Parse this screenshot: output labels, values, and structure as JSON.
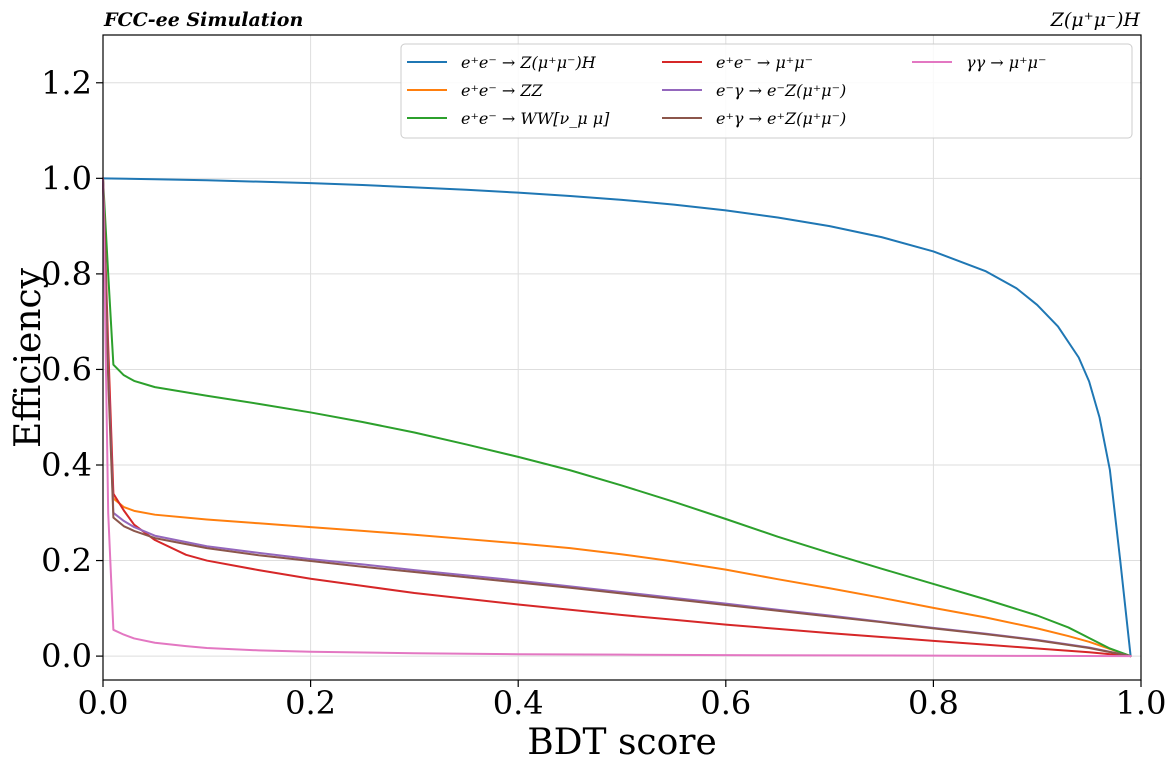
{
  "chart_data": {
    "type": "line",
    "top_left_label": "FCC-ee Simulation",
    "top_right_label": "Z(μ⁺μ⁻)H",
    "xlabel": "BDT score",
    "ylabel": "Efficiency",
    "xlim": [
      0.0,
      1.0
    ],
    "ylim": [
      -0.05,
      1.3
    ],
    "xticks": [
      {
        "value": 0.0,
        "label": "0.0"
      },
      {
        "value": 0.2,
        "label": "0.2"
      },
      {
        "value": 0.4,
        "label": "0.4"
      },
      {
        "value": 0.6,
        "label": "0.6"
      },
      {
        "value": 0.8,
        "label": "0.8"
      },
      {
        "value": 1.0,
        "label": "1.0"
      }
    ],
    "yticks": [
      {
        "value": 0.0,
        "label": "0.0"
      },
      {
        "value": 0.2,
        "label": "0.2"
      },
      {
        "value": 0.4,
        "label": "0.4"
      },
      {
        "value": 0.6,
        "label": "0.6"
      },
      {
        "value": 0.8,
        "label": "0.8"
      },
      {
        "value": 1.0,
        "label": "1.0"
      },
      {
        "value": 1.2,
        "label": "1.2"
      }
    ],
    "grid": true,
    "legend_position": "top-right",
    "legend_columns": 3,
    "series": [
      {
        "name": "e⁺e⁻ → Z(μ⁺μ⁻)H",
        "color": "#1f77b4",
        "x": [
          0,
          0.05,
          0.1,
          0.15,
          0.2,
          0.25,
          0.3,
          0.35,
          0.4,
          0.45,
          0.5,
          0.55,
          0.6,
          0.65,
          0.7,
          0.75,
          0.8,
          0.85,
          0.88,
          0.9,
          0.92,
          0.94,
          0.95,
          0.96,
          0.97,
          0.98,
          0.99
        ],
        "y": [
          1.0,
          0.998,
          0.996,
          0.993,
          0.99,
          0.986,
          0.981,
          0.976,
          0.97,
          0.963,
          0.955,
          0.945,
          0.933,
          0.918,
          0.9,
          0.877,
          0.847,
          0.806,
          0.77,
          0.735,
          0.69,
          0.625,
          0.575,
          0.5,
          0.39,
          0.2,
          0.0
        ]
      },
      {
        "name": "e⁺e⁻ → ZZ",
        "color": "#ff7f0e",
        "x": [
          0,
          0.005,
          0.01,
          0.02,
          0.03,
          0.05,
          0.1,
          0.15,
          0.2,
          0.25,
          0.3,
          0.35,
          0.4,
          0.45,
          0.5,
          0.55,
          0.6,
          0.65,
          0.7,
          0.75,
          0.8,
          0.85,
          0.9,
          0.93,
          0.95,
          0.97,
          0.99
        ],
        "y": [
          1.0,
          0.6,
          0.33,
          0.312,
          0.304,
          0.296,
          0.286,
          0.278,
          0.27,
          0.262,
          0.254,
          0.245,
          0.236,
          0.226,
          0.213,
          0.198,
          0.181,
          0.161,
          0.142,
          0.122,
          0.101,
          0.081,
          0.058,
          0.042,
          0.03,
          0.015,
          0.0
        ]
      },
      {
        "name": "e⁺e⁻ → WW[ν_μ μ]",
        "color": "#2ca02c",
        "x": [
          0,
          0.005,
          0.01,
          0.02,
          0.03,
          0.05,
          0.1,
          0.15,
          0.2,
          0.25,
          0.3,
          0.35,
          0.4,
          0.45,
          0.5,
          0.55,
          0.6,
          0.65,
          0.7,
          0.75,
          0.8,
          0.85,
          0.9,
          0.93,
          0.95,
          0.97,
          0.99
        ],
        "y": [
          1.0,
          0.8,
          0.61,
          0.588,
          0.576,
          0.563,
          0.545,
          0.528,
          0.51,
          0.49,
          0.468,
          0.443,
          0.417,
          0.389,
          0.357,
          0.323,
          0.287,
          0.25,
          0.216,
          0.183,
          0.151,
          0.119,
          0.085,
          0.06,
          0.038,
          0.016,
          0.0
        ]
      },
      {
        "name": "e⁺e⁻ → μ⁺μ⁻",
        "color": "#d62728",
        "x": [
          0,
          0.005,
          0.01,
          0.02,
          0.03,
          0.05,
          0.08,
          0.1,
          0.15,
          0.2,
          0.25,
          0.3,
          0.35,
          0.4,
          0.45,
          0.5,
          0.55,
          0.6,
          0.65,
          0.7,
          0.75,
          0.8,
          0.85,
          0.9,
          0.95,
          0.99
        ],
        "y": [
          1.0,
          0.65,
          0.34,
          0.305,
          0.275,
          0.243,
          0.212,
          0.2,
          0.18,
          0.162,
          0.147,
          0.132,
          0.12,
          0.108,
          0.097,
          0.086,
          0.076,
          0.066,
          0.057,
          0.048,
          0.04,
          0.032,
          0.024,
          0.016,
          0.008,
          0.0
        ]
      },
      {
        "name": "e⁻γ → e⁻Z(μ⁺μ⁻)",
        "color": "#9467bd",
        "x": [
          0,
          0.005,
          0.01,
          0.02,
          0.03,
          0.05,
          0.1,
          0.15,
          0.2,
          0.25,
          0.3,
          0.35,
          0.4,
          0.45,
          0.5,
          0.55,
          0.6,
          0.65,
          0.7,
          0.75,
          0.8,
          0.85,
          0.9,
          0.95,
          0.99
        ],
        "y": [
          1.0,
          0.6,
          0.3,
          0.283,
          0.27,
          0.252,
          0.23,
          0.216,
          0.203,
          0.192,
          0.18,
          0.169,
          0.158,
          0.146,
          0.134,
          0.122,
          0.11,
          0.097,
          0.085,
          0.072,
          0.059,
          0.047,
          0.034,
          0.018,
          0.0
        ]
      },
      {
        "name": "e⁺γ → e⁺Z(μ⁺μ⁻)",
        "color": "#8c564b",
        "x": [
          0,
          0.005,
          0.01,
          0.02,
          0.03,
          0.05,
          0.1,
          0.15,
          0.2,
          0.25,
          0.3,
          0.35,
          0.4,
          0.45,
          0.5,
          0.55,
          0.6,
          0.65,
          0.7,
          0.75,
          0.8,
          0.85,
          0.9,
          0.95,
          0.99
        ],
        "y": [
          1.0,
          0.58,
          0.29,
          0.272,
          0.262,
          0.247,
          0.226,
          0.211,
          0.199,
          0.187,
          0.176,
          0.165,
          0.154,
          0.143,
          0.131,
          0.119,
          0.107,
          0.095,
          0.083,
          0.071,
          0.058,
          0.046,
          0.033,
          0.017,
          0.0
        ]
      },
      {
        "name": "γγ → μ⁺μ⁻",
        "color": "#e377c2",
        "x": [
          0,
          0.005,
          0.01,
          0.02,
          0.03,
          0.05,
          0.08,
          0.1,
          0.15,
          0.2,
          0.3,
          0.4,
          0.5,
          0.6,
          0.7,
          0.8,
          0.9,
          0.99
        ],
        "y": [
          1.0,
          0.3,
          0.055,
          0.045,
          0.037,
          0.028,
          0.021,
          0.017,
          0.012,
          0.009,
          0.006,
          0.004,
          0.003,
          0.002,
          0.0015,
          0.001,
          0.0005,
          0.0
        ]
      }
    ]
  }
}
